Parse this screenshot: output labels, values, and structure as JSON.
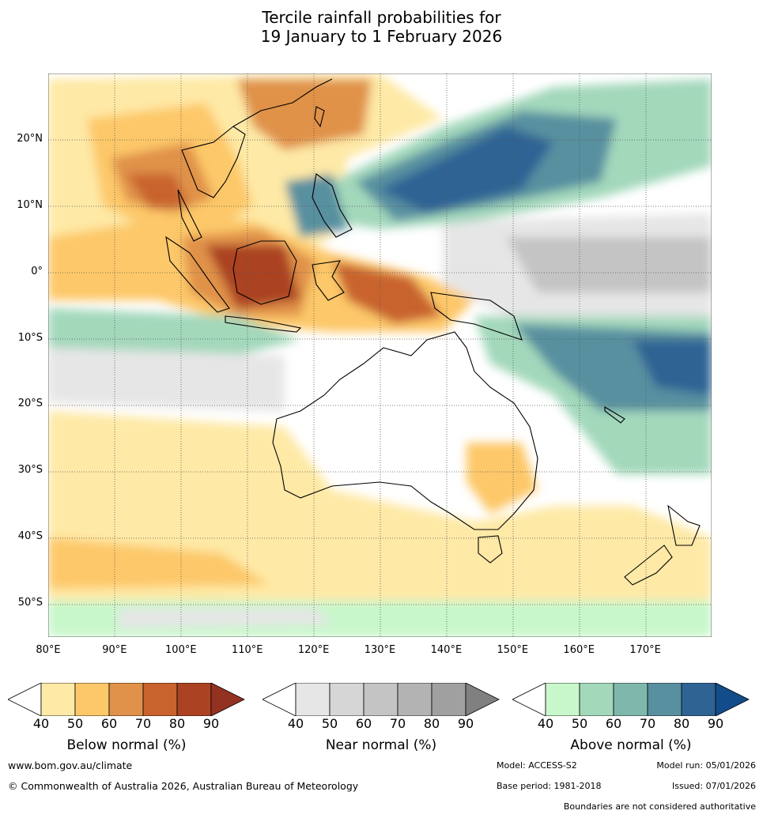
{
  "title_line1": "Tercile rainfall probabilities for",
  "title_line2": "19 January to 1 February 2026",
  "map": {
    "lon_range": [
      80,
      180
    ],
    "lat_range": [
      -55,
      30
    ],
    "lat_labels": [
      "20°N",
      "10°N",
      "0°",
      "10°S",
      "20°S",
      "30°S",
      "40°S",
      "50°S"
    ],
    "lat_values": [
      20,
      10,
      0,
      -10,
      -20,
      -30,
      -40,
      -50
    ],
    "lon_labels": [
      "80°E",
      "90°E",
      "100°E",
      "110°E",
      "120°E",
      "130°E",
      "140°E",
      "150°E",
      "160°E",
      "170°E"
    ],
    "lon_values": [
      80,
      90,
      100,
      110,
      120,
      130,
      140,
      150,
      160,
      170
    ]
  },
  "colorbars": [
    {
      "label": "Below normal (%)",
      "ticks": [
        "40",
        "50",
        "60",
        "70",
        "80",
        "90"
      ],
      "colors": [
        "#fee9a6",
        "#fdc869",
        "#e0924a",
        "#c9632e",
        "#ab4322",
        "#943221"
      ]
    },
    {
      "label": "Near normal (%)",
      "ticks": [
        "40",
        "50",
        "60",
        "70",
        "80",
        "90"
      ],
      "colors": [
        "#e6e6e6",
        "#d6d6d6",
        "#c4c4c4",
        "#b3b3b3",
        "#a0a0a0",
        "#808080"
      ]
    },
    {
      "label": "Above normal (%)",
      "ticks": [
        "40",
        "50",
        "60",
        "70",
        "80",
        "90"
      ],
      "colors": [
        "#c8f7cb",
        "#a3d8bb",
        "#7fb7ac",
        "#5990a0",
        "#2e6394",
        "#134c8a"
      ]
    }
  ],
  "footer": {
    "url": "www.bom.gov.au/climate",
    "copyright": "© Commonwealth of Australia 2026, Australian Bureau of Meteorology",
    "model": "Model: ACCESS-S2",
    "model_run": "Model run: 05/01/2026",
    "base_period": "Base period: 1981-2018",
    "issued": "Issued: 07/01/2026",
    "disclaimer": "Boundaries are not considered authoritative"
  }
}
